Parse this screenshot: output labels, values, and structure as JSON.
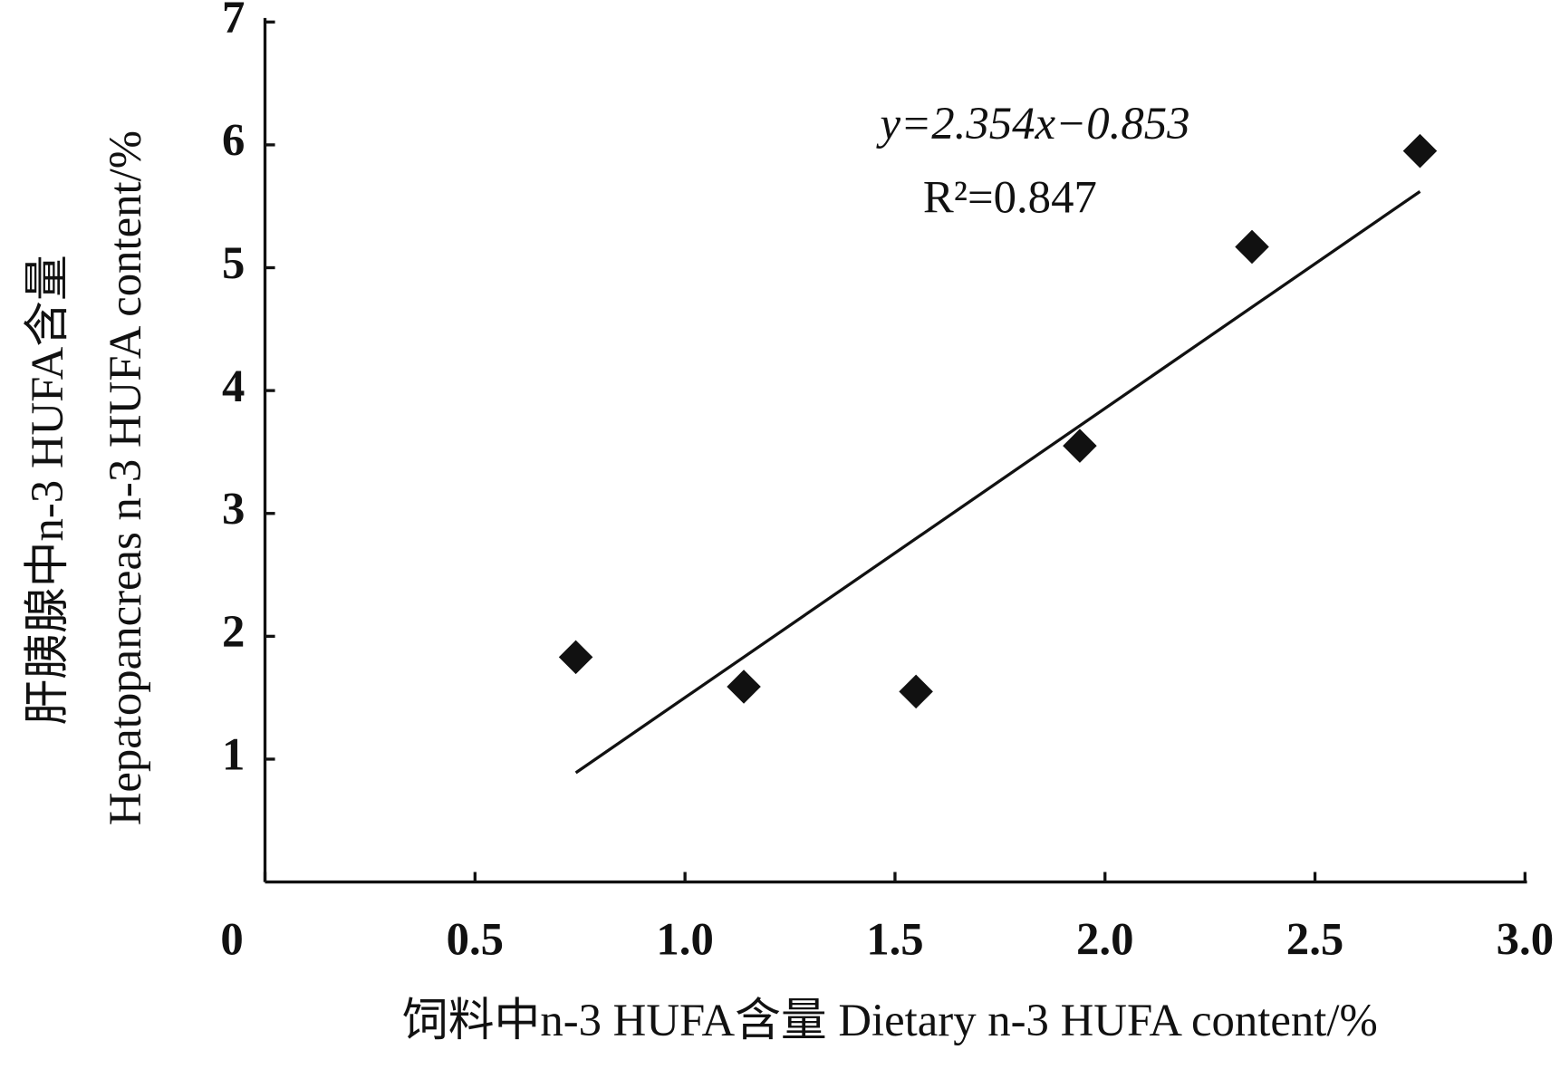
{
  "chart_data": {
    "type": "scatter",
    "x_label": "饲料中n-3 HUFA含量 Dietary n-3 HUFA content/%",
    "y_label": [
      "肝胰腺中n-3 HUFA含量",
      "Hepatopancreas n-3 HUFA content/%"
    ],
    "x": [
      0.74,
      1.14,
      1.55,
      1.94,
      2.35,
      2.75
    ],
    "values": [
      1.83,
      1.59,
      1.55,
      3.55,
      5.17,
      5.95
    ],
    "color": "#111111",
    "marker": "diamond",
    "trendline": {
      "slope": 2.354,
      "intercept": -0.853,
      "color": "#111111"
    },
    "annotations": [
      "y=2.354x−0.853",
      "R²=0.847"
    ],
    "xlim": [
      0,
      3
    ],
    "ylim": [
      0,
      7
    ],
    "xticks": [
      0,
      0.5,
      {
        "value": 1,
        "label": "1.0"
      },
      1.5,
      {
        "value": 2,
        "label": "2.0"
      },
      2.5,
      {
        "value": 3,
        "label": "3.0"
      }
    ],
    "yticks": [
      1,
      2,
      3,
      4,
      5,
      6,
      7
    ],
    "grid": false
  }
}
